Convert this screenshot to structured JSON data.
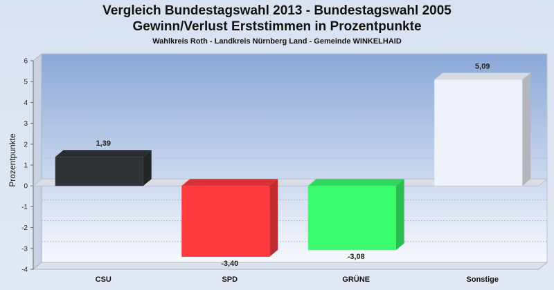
{
  "title_line1": "Vergleich Bundestagswahl 2013  - Bundestagswahl 2005",
  "title_line2": "Gewinn/Verlust Erststimmen in Prozentpunkte",
  "subtitle": "Wahlkreis Roth - Landkreis Nürnberg Land - Gemeinde WINKELHAID",
  "chart_data": {
    "type": "bar",
    "title": "Vergleich Bundestagswahl 2013  - Bundestagswahl 2005 / Gewinn/Verlust Erststimmen in Prozentpunkte",
    "subtitle": "Wahlkreis Roth - Landkreis Nürnberg Land - Gemeinde WINKELHAID",
    "ylabel": "Prozentpunkte",
    "xlabel": "",
    "ylim": [
      -4,
      6
    ],
    "yticks": [
      6,
      5,
      4,
      3,
      2,
      1,
      0,
      -1,
      -2,
      -3,
      -4
    ],
    "categories": [
      "CSU",
      "SPD",
      "GRÜNE",
      "Sonstige"
    ],
    "values": [
      1.39,
      -3.4,
      -3.08,
      5.09
    ],
    "value_labels": [
      "1,39",
      "-3,40",
      "-3,08",
      "5,09"
    ],
    "colors": [
      "#2f3237",
      "#ff3a3f",
      "#3afc6c",
      "#eef2fa"
    ],
    "grid": true,
    "style": "3d"
  }
}
